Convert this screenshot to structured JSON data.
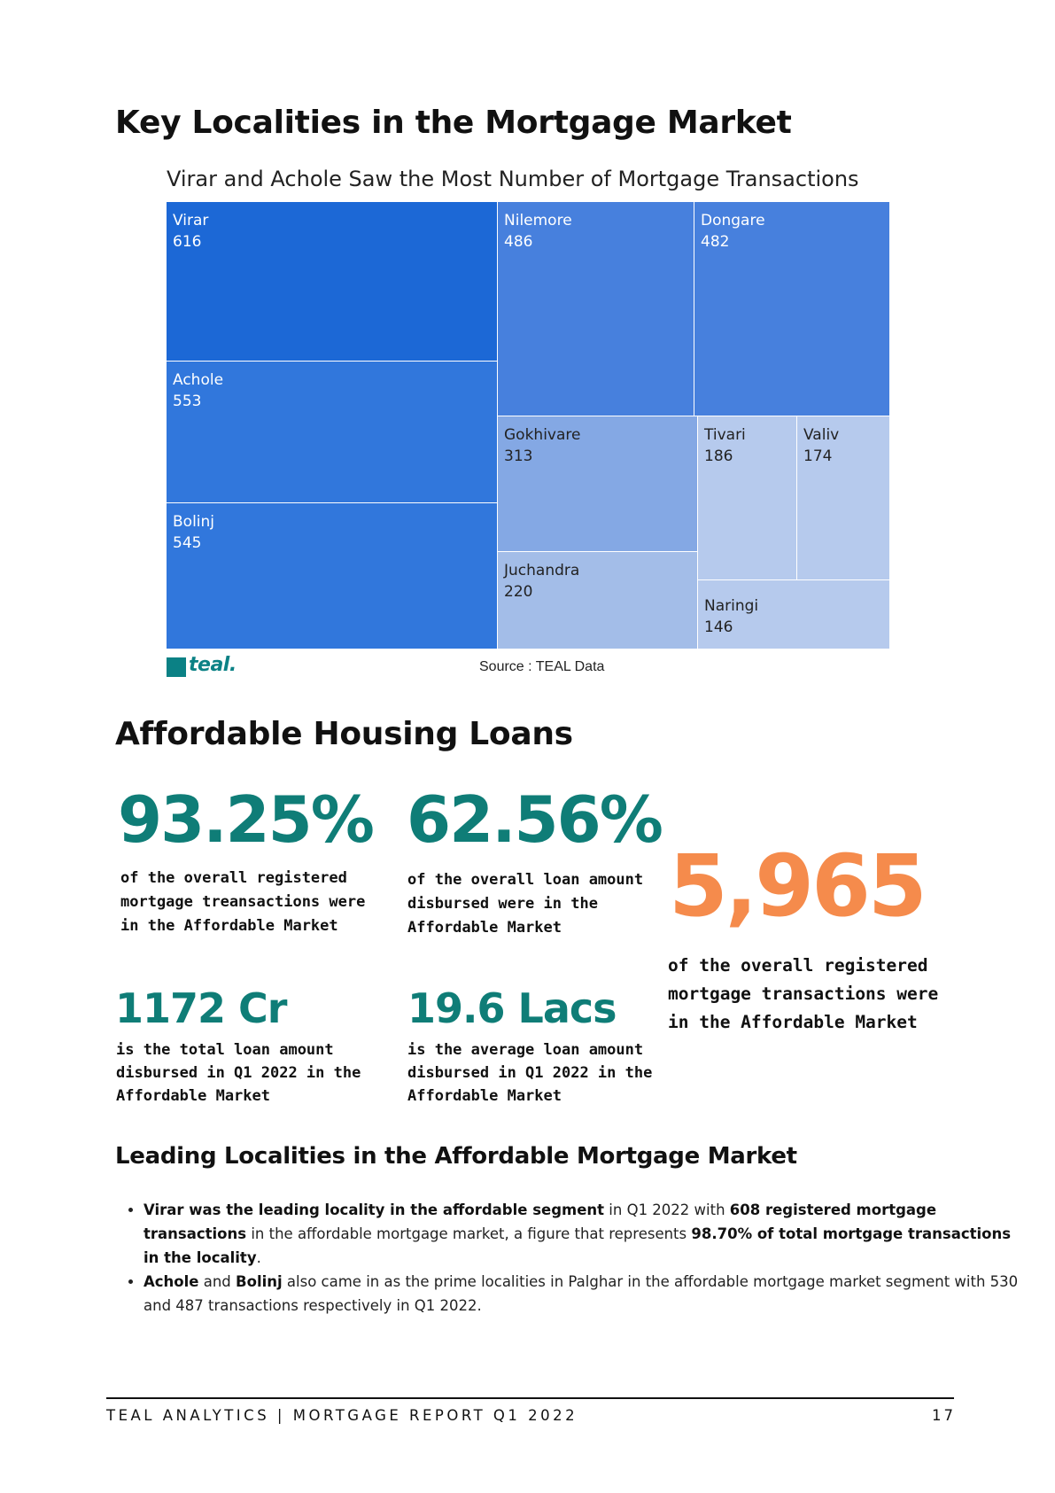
{
  "section1": {
    "title": "Key Localities in the Mortgage Market"
  },
  "chart_data": {
    "type": "treemap",
    "title": "Virar and Achole Saw the Most Number of Mortgage Transactions",
    "categories": [
      "Virar",
      "Achole",
      "Bolinj",
      "Nilemore",
      "Dongare",
      "Gokhivare",
      "Juchandra",
      "Tivari",
      "Valiv",
      "Naringi"
    ],
    "values": [
      616,
      553,
      545,
      486,
      482,
      313,
      220,
      186,
      174,
      146
    ],
    "colors": {
      "Virar": "#1c68d6",
      "Achole": "#3177dc",
      "Bolinj": "#3177dc",
      "Nilemore": "#4780dd",
      "Dongare": "#4780dd",
      "Gokhivare": "#84a8e4",
      "Juchandra": "#a3bde8",
      "Tivari": "#b6caed",
      "Valiv": "#b6caed",
      "Naringi": "#b6caed"
    },
    "label_colors": {
      "dark": "#ffffff",
      "light": "#222222"
    }
  },
  "logo": {
    "text": "teal."
  },
  "source": "Source : TEAL Data",
  "section2": {
    "title": "Affordable Housing Loans",
    "stats": {
      "s1": {
        "value": "93.25%",
        "lines": [
          "of the overall registered",
          "mortgage treansactions were",
          "in the Affordable Market"
        ]
      },
      "s2": {
        "value": "62.56%",
        "lines": [
          "of the overall loan amount",
          "disbursed were in the",
          "Affordable Market"
        ]
      },
      "s3": {
        "value": "5,965",
        "lines": [
          "of the overall registered",
          "mortgage transactions were",
          "in the Affordable Market"
        ]
      },
      "s4": {
        "value": "1172 Cr",
        "lines": [
          "is the total loan amount",
          "disbursed in Q1 2022 in the",
          "Affordable Market"
        ]
      },
      "s5": {
        "value": "19.6 Lacs",
        "lines": [
          "is the average loan amount",
          "disbursed in Q1 2022 in the",
          "Affordable Market"
        ]
      }
    }
  },
  "section3": {
    "title": "Leading Localities in the Affordable Mortgage Market",
    "b1": {
      "p1": "Virar was the leading locality in the affordable segment",
      "p2": " in Q1 2022 with ",
      "p3": "608 registered mortgage transactions",
      "p4": " in the affordable mortgage market, a figure that represents ",
      "p5": "98.70% of total mortgage transactions in the locality",
      "p6": "."
    },
    "b2": {
      "p1": "Achole",
      "p2": " and ",
      "p3": "Bolinj",
      "p4": " also came in as the prime localities in Palghar in the affordable mortgage market segment  with 530 and 487 transactions respectively in Q1 2022."
    }
  },
  "footer": {
    "text": "TEAL ANALYTICS | MORTGAGE REPORT Q1 2022",
    "page": "17"
  },
  "colors": {
    "teal": "#0f7d77",
    "orange": "#f58b4c"
  }
}
